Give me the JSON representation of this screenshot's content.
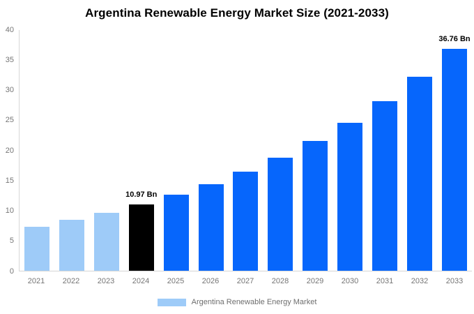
{
  "title": "Argentina Renewable Energy Market Size (2021-2033)",
  "colors": {
    "historical_bar": "#9ECBF8",
    "current_year_bar": "#000000",
    "forecast_bar": "#0666FC",
    "axis_line": "#D6D6D6",
    "tick_text": "#757575",
    "value_label_text": "#000000",
    "legend_text": "#6E6E6E",
    "background": "#FFFFFF"
  },
  "chart_data": {
    "type": "bar",
    "title": "Argentina Renewable Energy Market Size (2021-2033)",
    "xlabel": "",
    "ylabel": "",
    "unit": "Bn",
    "categories": [
      "2021",
      "2022",
      "2023",
      "2024",
      "2025",
      "2026",
      "2027",
      "2028",
      "2029",
      "2030",
      "2031",
      "2032",
      "2033"
    ],
    "values": [
      7.33,
      8.39,
      9.59,
      10.97,
      12.55,
      14.35,
      16.41,
      18.77,
      21.47,
      24.55,
      28.08,
      32.11,
      36.76
    ],
    "bar_colors": [
      "#9ECBF8",
      "#9ECBF8",
      "#9ECBF8",
      "#000000",
      "#0666FC",
      "#0666FC",
      "#0666FC",
      "#0666FC",
      "#0666FC",
      "#0666FC",
      "#0666FC",
      "#0666FC",
      "#0666FC"
    ],
    "point_labels": [
      "",
      "",
      "",
      "10.97 Bn",
      "",
      "",
      "",
      "",
      "",
      "",
      "",
      "",
      "36.76 Bn"
    ],
    "y_ticks": [
      0,
      5,
      10,
      15,
      20,
      25,
      30,
      35,
      40
    ],
    "ylim": [
      0,
      40
    ],
    "grid": false,
    "legend": {
      "position": "bottom",
      "entries": [
        {
          "label": "Argentina Renewable Energy Market",
          "swatch_color": "#9ECBF8"
        }
      ]
    }
  }
}
